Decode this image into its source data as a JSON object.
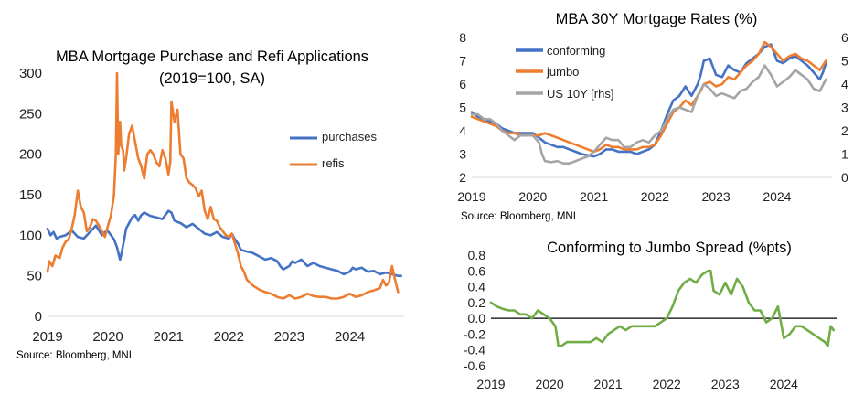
{
  "charts": [
    {
      "type": "line",
      "title": "MBA Mortgage Purchase and Refi Applications",
      "subtitle": "(2019=100, SA)",
      "source": "Source: Bloomberg, MNI",
      "xlabel": "",
      "ylabel": "",
      "xlim": [
        2019,
        2024.9
      ],
      "ylim": [
        0,
        300
      ],
      "yticks": [
        0,
        50,
        100,
        150,
        200,
        250,
        300
      ],
      "xticks": [
        2019,
        2020,
        2021,
        2022,
        2023,
        2024
      ],
      "grid": false,
      "legend_position": "right",
      "series": [
        {
          "name": "purchases",
          "color": "#4472C4",
          "x": [
            2019.0,
            2019.05,
            2019.1,
            2019.15,
            2019.2,
            2019.3,
            2019.4,
            2019.5,
            2019.6,
            2019.7,
            2019.8,
            2019.9,
            2019.95,
            2020.0,
            2020.05,
            2020.1,
            2020.15,
            2020.2,
            2020.23,
            2020.27,
            2020.3,
            2020.35,
            2020.4,
            2020.45,
            2020.5,
            2020.55,
            2020.6,
            2020.7,
            2020.8,
            2020.9,
            2021.0,
            2021.05,
            2021.1,
            2021.2,
            2021.3,
            2021.4,
            2021.5,
            2021.6,
            2021.7,
            2021.8,
            2021.9,
            2022.0,
            2022.05,
            2022.1,
            2022.15,
            2022.2,
            2022.3,
            2022.4,
            2022.5,
            2022.6,
            2022.7,
            2022.8,
            2022.85,
            2022.9,
            2023.0,
            2023.05,
            2023.1,
            2023.2,
            2023.3,
            2023.4,
            2023.5,
            2023.6,
            2023.7,
            2023.8,
            2023.9,
            2024.0,
            2024.05,
            2024.1,
            2024.2,
            2024.3,
            2024.4,
            2024.5,
            2024.6,
            2024.7,
            2024.8,
            2024.85
          ],
          "values": [
            108,
            100,
            104,
            96,
            98,
            100,
            106,
            98,
            96,
            104,
            112,
            100,
            104,
            105,
            100,
            95,
            85,
            70,
            80,
            95,
            108,
            115,
            122,
            125,
            118,
            125,
            128,
            124,
            122,
            120,
            130,
            128,
            118,
            115,
            110,
            114,
            108,
            102,
            100,
            104,
            98,
            96,
            102,
            95,
            90,
            82,
            80,
            78,
            74,
            70,
            72,
            68,
            62,
            58,
            62,
            68,
            66,
            70,
            62,
            66,
            62,
            60,
            58,
            56,
            52,
            55,
            60,
            58,
            60,
            55,
            56,
            52,
            54,
            52,
            50,
            50
          ]
        },
        {
          "name": "refis",
          "color": "#ED7D31",
          "x": [
            2019.0,
            2019.03,
            2019.08,
            2019.13,
            2019.2,
            2019.25,
            2019.3,
            2019.35,
            2019.4,
            2019.45,
            2019.5,
            2019.55,
            2019.6,
            2019.65,
            2019.7,
            2019.75,
            2019.8,
            2019.85,
            2019.9,
            2019.95,
            2020.0,
            2020.05,
            2020.1,
            2020.13,
            2020.15,
            2020.17,
            2020.2,
            2020.22,
            2020.25,
            2020.27,
            2020.3,
            2020.35,
            2020.4,
            2020.45,
            2020.5,
            2020.55,
            2020.6,
            2020.65,
            2020.7,
            2020.75,
            2020.8,
            2020.85,
            2020.9,
            2020.95,
            2021.0,
            2021.03,
            2021.05,
            2021.1,
            2021.15,
            2021.2,
            2021.25,
            2021.3,
            2021.35,
            2021.4,
            2021.45,
            2021.5,
            2021.55,
            2021.6,
            2021.65,
            2021.7,
            2021.75,
            2021.8,
            2021.85,
            2021.9,
            2021.95,
            2022.0,
            2022.05,
            2022.1,
            2022.15,
            2022.2,
            2022.25,
            2022.3,
            2022.4,
            2022.5,
            2022.6,
            2022.7,
            2022.8,
            2022.9,
            2023.0,
            2023.1,
            2023.2,
            2023.3,
            2023.4,
            2023.5,
            2023.6,
            2023.7,
            2023.8,
            2023.9,
            2024.0,
            2024.1,
            2024.2,
            2024.3,
            2024.4,
            2024.5,
            2024.55,
            2024.6,
            2024.65,
            2024.7,
            2024.75,
            2024.8
          ],
          "values": [
            55,
            68,
            62,
            75,
            72,
            85,
            92,
            95,
            108,
            125,
            155,
            135,
            128,
            105,
            110,
            120,
            118,
            112,
            105,
            98,
            112,
            125,
            150,
            200,
            300,
            200,
            240,
            210,
            205,
            180,
            195,
            225,
            235,
            215,
            195,
            185,
            170,
            200,
            205,
            200,
            190,
            185,
            205,
            195,
            175,
            190,
            265,
            240,
            255,
            200,
            195,
            170,
            165,
            162,
            158,
            148,
            155,
            130,
            120,
            135,
            120,
            118,
            110,
            105,
            100,
            98,
            102,
            90,
            78,
            62,
            55,
            45,
            38,
            33,
            30,
            28,
            24,
            22,
            26,
            22,
            24,
            28,
            25,
            24,
            24,
            22,
            22,
            24,
            28,
            24,
            26,
            30,
            32,
            35,
            45,
            38,
            42,
            62,
            45,
            30
          ]
        }
      ]
    },
    {
      "type": "line",
      "title": "MBA 30Y Mortgage Rates (%)",
      "source": "Source: Bloomberg, MNI",
      "xlabel": "",
      "ylabel": "",
      "ylabel_right": "",
      "xlim": [
        2019,
        2024.9
      ],
      "ylim": [
        2,
        8
      ],
      "ylim_right": [
        0,
        6
      ],
      "yticks": [
        2,
        3,
        4,
        5,
        6,
        7,
        8
      ],
      "yticks_right": [
        0,
        1,
        2,
        3,
        4,
        5,
        6
      ],
      "xticks": [
        2019,
        2020,
        2021,
        2022,
        2023,
        2024
      ],
      "grid": false,
      "legend_position": "top-left",
      "series": [
        {
          "name": "conforming",
          "color": "#4472C4",
          "axis": "left",
          "x": [
            2019.0,
            2019.1,
            2019.2,
            2019.3,
            2019.4,
            2019.5,
            2019.6,
            2019.7,
            2019.8,
            2019.9,
            2020.0,
            2020.1,
            2020.2,
            2020.3,
            2020.4,
            2020.5,
            2020.6,
            2020.7,
            2020.8,
            2020.9,
            2021.0,
            2021.1,
            2021.2,
            2021.3,
            2021.4,
            2021.5,
            2021.6,
            2021.7,
            2021.8,
            2021.9,
            2022.0,
            2022.1,
            2022.2,
            2022.3,
            2022.4,
            2022.5,
            2022.6,
            2022.7,
            2022.75,
            2022.8,
            2022.9,
            2023.0,
            2023.1,
            2023.2,
            2023.3,
            2023.4,
            2023.5,
            2023.6,
            2023.7,
            2023.8,
            2023.9,
            2024.0,
            2024.1,
            2024.2,
            2024.3,
            2024.4,
            2024.5,
            2024.6,
            2024.7,
            2024.75,
            2024.8
          ],
          "values": [
            4.8,
            4.6,
            4.5,
            4.4,
            4.3,
            4.1,
            4.0,
            3.9,
            3.9,
            3.9,
            3.9,
            3.7,
            3.5,
            3.4,
            3.3,
            3.3,
            3.2,
            3.1,
            3.0,
            2.95,
            2.9,
            3.0,
            3.2,
            3.2,
            3.1,
            3.1,
            3.1,
            3.0,
            3.1,
            3.2,
            3.4,
            4.0,
            4.7,
            5.3,
            5.5,
            5.9,
            5.5,
            6.0,
            6.4,
            7.0,
            7.1,
            6.4,
            6.3,
            6.8,
            6.6,
            6.5,
            6.9,
            7.1,
            7.3,
            7.6,
            7.7,
            7.0,
            6.9,
            7.1,
            7.2,
            7.0,
            6.8,
            6.5,
            6.2,
            6.5,
            6.9
          ]
        },
        {
          "name": "jumbo",
          "color": "#ED7D31",
          "axis": "left",
          "x": [
            2019.0,
            2019.1,
            2019.2,
            2019.3,
            2019.4,
            2019.5,
            2019.6,
            2019.7,
            2019.8,
            2019.9,
            2020.0,
            2020.1,
            2020.2,
            2020.3,
            2020.4,
            2020.5,
            2020.6,
            2020.7,
            2020.8,
            2020.9,
            2021.0,
            2021.1,
            2021.2,
            2021.3,
            2021.4,
            2021.5,
            2021.6,
            2021.7,
            2021.8,
            2021.9,
            2022.0,
            2022.1,
            2022.2,
            2022.3,
            2022.4,
            2022.5,
            2022.6,
            2022.7,
            2022.75,
            2022.8,
            2022.9,
            2023.0,
            2023.1,
            2023.2,
            2023.3,
            2023.4,
            2023.5,
            2023.6,
            2023.7,
            2023.8,
            2023.9,
            2024.0,
            2024.1,
            2024.2,
            2024.3,
            2024.4,
            2024.5,
            2024.6,
            2024.7,
            2024.75,
            2024.8
          ],
          "values": [
            4.6,
            4.5,
            4.4,
            4.3,
            4.2,
            4.0,
            3.9,
            3.9,
            3.8,
            3.8,
            3.8,
            3.8,
            3.9,
            3.8,
            3.7,
            3.6,
            3.5,
            3.4,
            3.3,
            3.2,
            3.1,
            3.2,
            3.4,
            3.3,
            3.3,
            3.2,
            3.2,
            3.2,
            3.3,
            3.3,
            3.4,
            3.8,
            4.3,
            4.8,
            5.0,
            5.3,
            5.1,
            5.5,
            5.7,
            6.0,
            6.1,
            5.9,
            6.0,
            6.3,
            6.2,
            6.5,
            6.8,
            7.0,
            7.3,
            7.8,
            7.6,
            7.3,
            7.0,
            7.2,
            7.3,
            7.1,
            7.0,
            6.8,
            6.6,
            6.8,
            7.0
          ]
        },
        {
          "name": "US 10Y [rhs]",
          "color": "#A5A5A5",
          "axis": "right",
          "x": [
            2019.0,
            2019.1,
            2019.2,
            2019.3,
            2019.4,
            2019.5,
            2019.6,
            2019.7,
            2019.8,
            2019.9,
            2020.0,
            2020.1,
            2020.15,
            2020.2,
            2020.3,
            2020.4,
            2020.5,
            2020.6,
            2020.7,
            2020.8,
            2020.9,
            2021.0,
            2021.1,
            2021.2,
            2021.3,
            2021.4,
            2021.5,
            2021.6,
            2021.7,
            2021.8,
            2021.9,
            2022.0,
            2022.1,
            2022.2,
            2022.3,
            2022.4,
            2022.5,
            2022.6,
            2022.7,
            2022.8,
            2022.9,
            2023.0,
            2023.1,
            2023.2,
            2023.3,
            2023.4,
            2023.5,
            2023.6,
            2023.7,
            2023.8,
            2023.9,
            2024.0,
            2024.1,
            2024.2,
            2024.3,
            2024.4,
            2024.5,
            2024.6,
            2024.7,
            2024.8
          ],
          "values": [
            2.7,
            2.7,
            2.5,
            2.5,
            2.3,
            2.0,
            1.8,
            1.6,
            1.8,
            1.8,
            1.8,
            1.5,
            1.0,
            0.7,
            0.65,
            0.7,
            0.6,
            0.6,
            0.7,
            0.8,
            0.9,
            1.1,
            1.4,
            1.7,
            1.6,
            1.6,
            1.3,
            1.3,
            1.5,
            1.6,
            1.5,
            1.8,
            2.0,
            2.5,
            2.9,
            3.0,
            2.9,
            2.8,
            3.5,
            4.0,
            3.8,
            3.5,
            3.6,
            3.5,
            3.4,
            3.7,
            3.8,
            4.1,
            4.3,
            4.8,
            4.4,
            3.9,
            4.1,
            4.3,
            4.6,
            4.4,
            4.2,
            3.8,
            3.7,
            4.2
          ]
        }
      ]
    },
    {
      "type": "line",
      "title": "Conforming to Jumbo Spread (%pts)",
      "xlabel": "",
      "ylabel": "",
      "xlim": [
        2019,
        2024.9
      ],
      "ylim": [
        -0.6,
        0.8
      ],
      "yticks": [
        -0.6,
        -0.4,
        -0.2,
        0.0,
        0.2,
        0.4,
        0.6,
        0.8
      ],
      "ytick_labels": [
        "-0.6",
        "-0.4",
        "-0.2",
        "0.0",
        "0.2",
        "0.4",
        "0.6",
        "0.8"
      ],
      "xticks": [
        2019,
        2020,
        2021,
        2022,
        2023,
        2024
      ],
      "grid": false,
      "zero_line": true,
      "series": [
        {
          "name": "",
          "color": "#70AD47",
          "x": [
            2019.0,
            2019.1,
            2019.2,
            2019.3,
            2019.4,
            2019.5,
            2019.6,
            2019.7,
            2019.8,
            2019.9,
            2020.0,
            2020.1,
            2020.15,
            2020.2,
            2020.3,
            2020.4,
            2020.5,
            2020.6,
            2020.7,
            2020.8,
            2020.9,
            2021.0,
            2021.1,
            2021.2,
            2021.3,
            2021.4,
            2021.5,
            2021.6,
            2021.7,
            2021.8,
            2021.9,
            2022.0,
            2022.1,
            2022.2,
            2022.3,
            2022.4,
            2022.5,
            2022.6,
            2022.7,
            2022.75,
            2022.8,
            2022.9,
            2023.0,
            2023.1,
            2023.2,
            2023.3,
            2023.4,
            2023.5,
            2023.6,
            2023.7,
            2023.8,
            2023.9,
            2024.0,
            2024.1,
            2024.2,
            2024.3,
            2024.4,
            2024.5,
            2024.6,
            2024.7,
            2024.75,
            2024.8,
            2024.85
          ],
          "values": [
            0.2,
            0.15,
            0.12,
            0.1,
            0.1,
            0.05,
            0.05,
            0.0,
            0.1,
            0.05,
            0.0,
            -0.1,
            -0.35,
            -0.35,
            -0.3,
            -0.3,
            -0.3,
            -0.3,
            -0.3,
            -0.25,
            -0.3,
            -0.2,
            -0.15,
            -0.1,
            -0.15,
            -0.1,
            -0.1,
            -0.1,
            -0.1,
            -0.1,
            -0.05,
            0.0,
            0.15,
            0.35,
            0.45,
            0.5,
            0.45,
            0.55,
            0.6,
            0.6,
            0.35,
            0.3,
            0.45,
            0.3,
            0.5,
            0.4,
            0.2,
            0.1,
            0.1,
            -0.05,
            0.0,
            0.15,
            -0.25,
            -0.2,
            -0.1,
            -0.1,
            -0.15,
            -0.2,
            -0.25,
            -0.3,
            -0.35,
            -0.1,
            -0.15
          ]
        }
      ]
    }
  ]
}
